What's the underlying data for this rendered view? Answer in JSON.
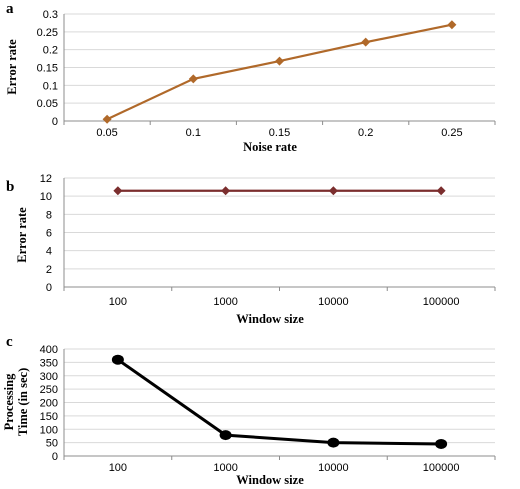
{
  "chart_data": [
    {
      "panel": "a",
      "type": "line",
      "x": [
        "0.05",
        "0.1",
        "0.15",
        "0.2",
        "0.25"
      ],
      "values": [
        0.005,
        0.118,
        0.168,
        0.221,
        0.27
      ],
      "xlabel": "Noise rate",
      "ylabel": "Error rate",
      "ylim": [
        0,
        0.3
      ],
      "yticks": [
        "0",
        "0.05",
        "0.1",
        "0.15",
        "0.2",
        "0.25",
        "0.3"
      ],
      "grid": true,
      "line_color": "#b0692a",
      "marker": "diamond"
    },
    {
      "panel": "b",
      "type": "line",
      "x": [
        "100",
        "1000",
        "10000",
        "100000"
      ],
      "values": [
        10.6,
        10.6,
        10.6,
        10.6
      ],
      "xlabel": "Window size",
      "ylabel": "Error rate",
      "ylim": [
        0,
        12
      ],
      "yticks": [
        "0",
        "2",
        "4",
        "6",
        "8",
        "10",
        "12"
      ],
      "grid": true,
      "line_color": "#7b2e2e",
      "marker": "diamond"
    },
    {
      "panel": "c",
      "type": "line",
      "x": [
        "100",
        "1000",
        "10000",
        "100000"
      ],
      "values": [
        360,
        78,
        50,
        45
      ],
      "xlabel": "Window size",
      "ylabel": "Processing\nTime (in sec)",
      "ylim": [
        0,
        400
      ],
      "yticks": [
        "0",
        "50",
        "100",
        "150",
        "200",
        "250",
        "300",
        "350",
        "400"
      ],
      "grid": true,
      "line_color": "#000000",
      "marker": "circle"
    }
  ]
}
